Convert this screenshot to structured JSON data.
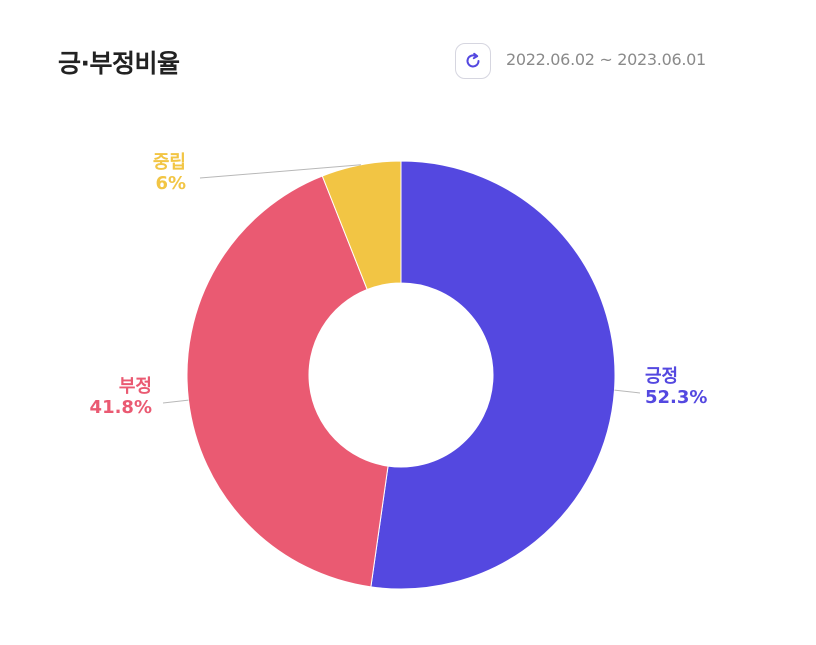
{
  "header": {
    "title": "긍·부정비율",
    "date_range": "2022.06.02 ~ 2023.06.01",
    "refresh_icon": "refresh-icon"
  },
  "chart_data": {
    "type": "pie",
    "variant": "donut",
    "slices": [
      {
        "label": "긍정",
        "value": 52.3,
        "display": "52.3%",
        "color": "#5448e0"
      },
      {
        "label": "부정",
        "value": 41.8,
        "display": "41.8%",
        "color": "#ea5a72"
      },
      {
        "label": "중립",
        "value": 6,
        "display": "6%",
        "color": "#f2c544"
      }
    ],
    "legend": "none",
    "labels": "outside with leader lines"
  }
}
